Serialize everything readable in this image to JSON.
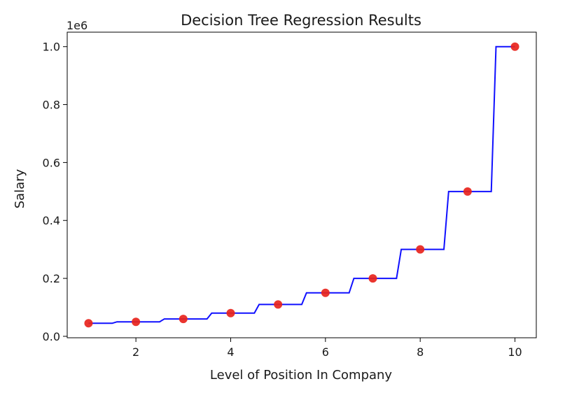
{
  "chart_data": {
    "type": "scatter",
    "title": "Decision Tree Regression Results",
    "xlabel": "Level of Position In Company",
    "ylabel": "Salary",
    "y_offset_label": "1e6",
    "xlim": [
      0.55,
      10.45
    ],
    "ylim": [
      -0.005,
      1.05
    ],
    "x_ticks": [
      2,
      4,
      6,
      8,
      10
    ],
    "x_tick_labels": [
      "2",
      "4",
      "6",
      "8",
      "10"
    ],
    "y_ticks": [
      0.0,
      0.2,
      0.4,
      0.6,
      0.8,
      1.0
    ],
    "y_tick_labels": [
      "0.0",
      "0.2",
      "0.4",
      "0.6",
      "0.8",
      "1.0"
    ],
    "grid": false,
    "series": [
      {
        "kind": "scatter",
        "color": "#e8241c",
        "x": [
          1,
          2,
          3,
          4,
          5,
          6,
          7,
          8,
          9,
          10
        ],
        "y": [
          0.045,
          0.05,
          0.06,
          0.08,
          0.11,
          0.15,
          0.2,
          0.3,
          0.5,
          1.0
        ]
      },
      {
        "kind": "step-line",
        "color": "#1010ff",
        "x": [
          1,
          1.5,
          1.6,
          2.5,
          2.6,
          3.5,
          3.6,
          4.5,
          4.6,
          5.5,
          5.6,
          6.5,
          6.6,
          7.5,
          7.6,
          8.5,
          8.6,
          9.5,
          9.6,
          10
        ],
        "y": [
          0.045,
          0.045,
          0.05,
          0.05,
          0.06,
          0.06,
          0.08,
          0.08,
          0.11,
          0.11,
          0.15,
          0.15,
          0.2,
          0.2,
          0.3,
          0.3,
          0.5,
          0.5,
          1.0,
          1.0
        ]
      }
    ]
  }
}
